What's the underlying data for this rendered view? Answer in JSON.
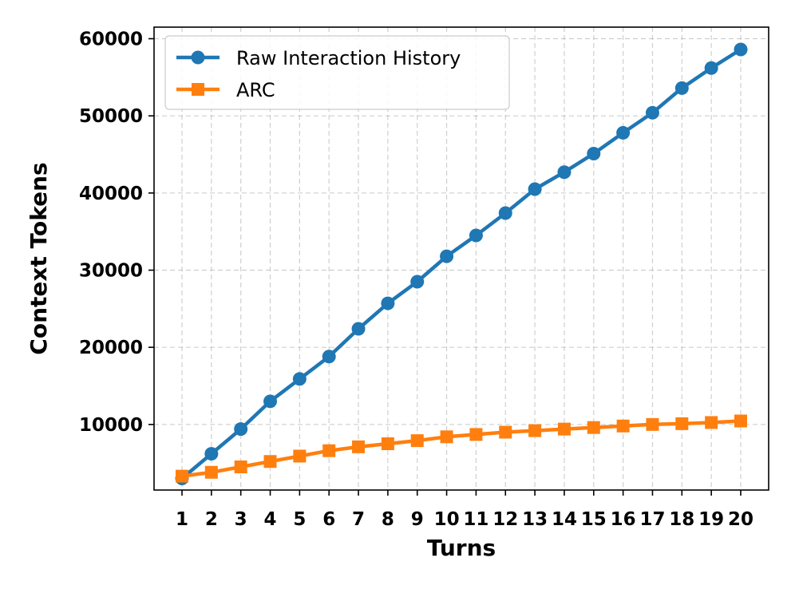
{
  "chart_data": {
    "type": "line",
    "xlabel": "Turns",
    "ylabel": "Context Tokens",
    "x": [
      1,
      2,
      3,
      4,
      5,
      6,
      7,
      8,
      9,
      10,
      11,
      12,
      13,
      14,
      15,
      16,
      17,
      18,
      19,
      20
    ],
    "xlim": [
      0.05,
      20.95
    ],
    "ylim": [
      1500,
      61500
    ],
    "yticks": [
      10000,
      20000,
      30000,
      40000,
      50000,
      60000
    ],
    "grid": true,
    "legend_position": "top-left",
    "series": [
      {
        "name": "Raw Interaction History",
        "color": "#1f77b4",
        "marker": "circle",
        "values": [
          3000,
          6200,
          9400,
          13000,
          15900,
          18800,
          22400,
          25700,
          28500,
          31800,
          34500,
          37400,
          40500,
          42700,
          45100,
          47800,
          50400,
          53600,
          56200,
          58600
        ]
      },
      {
        "name": "ARC",
        "color": "#ff7f0e",
        "marker": "square",
        "values": [
          3300,
          3800,
          4500,
          5200,
          5900,
          6600,
          7100,
          7500,
          7900,
          8400,
          8700,
          9000,
          9200,
          9400,
          9600,
          9800,
          10000,
          10100,
          10250,
          10450
        ]
      }
    ]
  }
}
